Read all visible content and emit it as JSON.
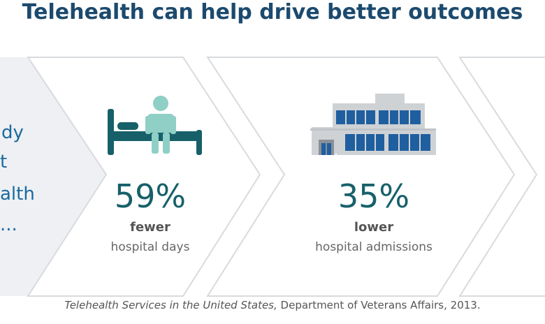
{
  "title": "Telehealth can help drive better outcomes",
  "left_panel": {
    "text_fragments": [
      "dy",
      "t",
      "alth",
      "..."
    ]
  },
  "stats": [
    {
      "value": "59%",
      "emphasis": "fewer",
      "description": "hospital days",
      "icon": "hospital-bed-patient-icon"
    },
    {
      "value": "35%",
      "emphasis": "lower",
      "description": "hospital admissions",
      "icon": "hospital-building-icon"
    }
  ],
  "citation": {
    "source_title": "Telehealth Services in the United States,",
    "source_detail": " Department of Veterans Affairs, 2013."
  },
  "colors": {
    "title": "#1c4a6e",
    "stat_value": "#17606a",
    "icon_teal": "#17606a",
    "icon_light": "#8fcfc6",
    "building_blue": "#1f5fa0",
    "building_gray": "#cfd2d5",
    "left_panel_bg": "#eef0f3",
    "arrow_outline": "#d5d8db"
  }
}
